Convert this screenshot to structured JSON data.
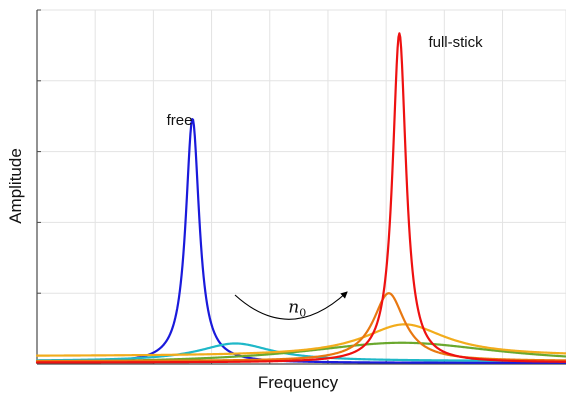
{
  "chart_data": {
    "type": "line",
    "title": "",
    "xlabel": "Frequency",
    "ylabel": "Amplitude",
    "xlim": [
      0,
      100
    ],
    "ylim": [
      0,
      100
    ],
    "grid": true,
    "xticks": [
      0,
      11,
      22,
      33,
      44,
      55,
      66,
      77,
      88,
      100
    ],
    "yticks": [
      0,
      20,
      40,
      60,
      80,
      100
    ],
    "tick_labels_shown": false,
    "legend": "none",
    "series": [
      {
        "color": "#1a1adb",
        "kind": "peak",
        "center": 29.4,
        "height": 69,
        "width": 1.55,
        "base": 0.3
      },
      {
        "color": "#1fb8c8",
        "kind": "peak",
        "center": 37.5,
        "height": 5,
        "width": 8.5,
        "base": 0.8
      },
      {
        "color": "#6aa82e",
        "kind": "peak",
        "center": 69,
        "height": 6,
        "width": 23,
        "base": 0
      },
      {
        "color": "#f2ac1c",
        "kind": "peak",
        "center": 69.5,
        "height": 9,
        "width": 9.5,
        "base": 2.2
      },
      {
        "color": "#e87811",
        "kind": "peak",
        "center": 66.5,
        "height": 19.2,
        "width": 3.6,
        "base": 0.8
      },
      {
        "color": "#ee1111",
        "kind": "peak",
        "center": 68.5,
        "height": 93,
        "width": 1.55,
        "base": 0.4
      }
    ],
    "annotations": [
      {
        "text": "free",
        "x": 24.5,
        "y": 67.5
      },
      {
        "text": "full-stick",
        "x": 74,
        "y": 89.5
      },
      {
        "text": "n",
        "subscript": "0",
        "x": 47.5,
        "y": 14.5
      }
    ]
  },
  "colors": {
    "grid": "#e3e3e3",
    "axis": "#4a4a4a",
    "arrow": "#000000"
  }
}
